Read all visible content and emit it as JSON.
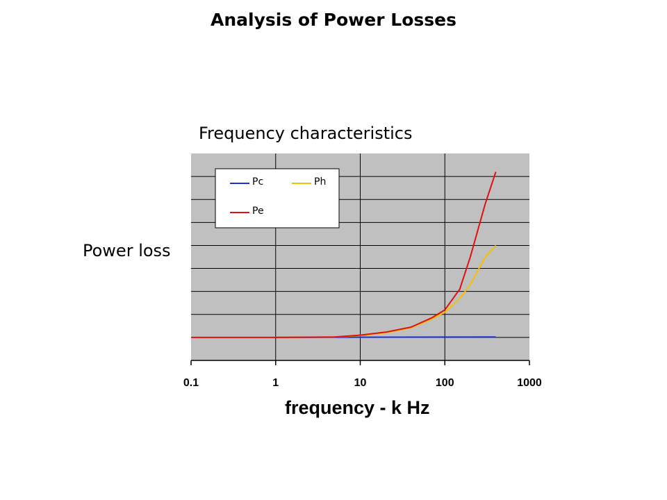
{
  "slide_title": "Analysis of Power Losses",
  "chart_data": {
    "type": "line",
    "title": "Frequency characteristics",
    "xlabel": "frequency -  k Hz",
    "ylabel": "Power loss",
    "x_scale": "log",
    "xlim": [
      0.1,
      1000
    ],
    "x_ticks": [
      "0.1",
      "1",
      "10",
      "100",
      "1000"
    ],
    "y_ticks_labeled": false,
    "ylim": [
      0,
      9
    ],
    "grid": true,
    "legend_position": "top-left",
    "series": [
      {
        "name": "Pc",
        "color": "#1f2fd6",
        "x": [
          1,
          400
        ],
        "y": [
          1,
          1.02
        ]
      },
      {
        "name": "Ph",
        "color": "#f5c000",
        "x": [
          1,
          5,
          10,
          20,
          40,
          70,
          100,
          150,
          200,
          300,
          400
        ],
        "y": [
          1,
          1.02,
          1.08,
          1.2,
          1.42,
          1.8,
          2.1,
          2.7,
          3.3,
          4.5,
          5
        ]
      },
      {
        "name": "Pe",
        "color": "#e01010",
        "x": [
          0.1,
          1,
          5,
          10,
          20,
          40,
          70,
          100,
          150,
          200,
          300,
          400
        ],
        "y": [
          1,
          1,
          1.02,
          1.1,
          1.23,
          1.45,
          1.85,
          2.2,
          3.1,
          4.5,
          6.8,
          8.2
        ]
      }
    ]
  }
}
